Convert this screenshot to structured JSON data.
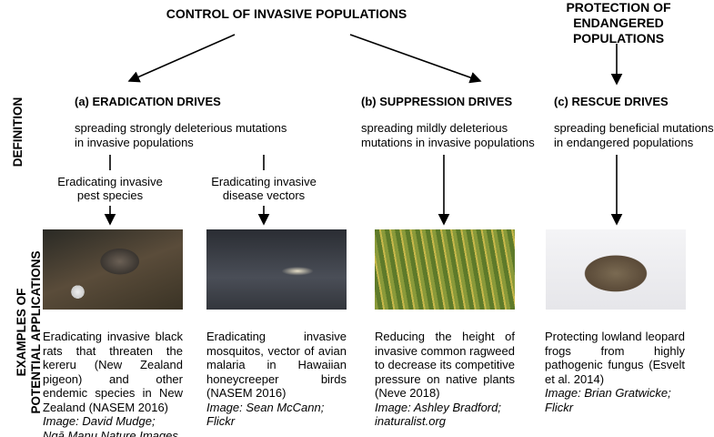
{
  "top": {
    "invasive": "CONTROL OF INVASIVE POPULATIONS",
    "endangered_1": "PROTECTION OF",
    "endangered_2": "ENDANGERED POPULATIONS"
  },
  "side": {
    "definition": "DEFINITION",
    "examples_1": "EXAMPLES OF",
    "examples_2": "POTENTIAL APPLICATIONS"
  },
  "columns": [
    {
      "heading": "(a) ERADICATION DRIVES",
      "def_1": "spreading strongly deleterious mutations",
      "def_2": "in invasive populations"
    },
    {
      "heading": "(b) SUPPRESSION DRIVES",
      "def_1": "spreading mildly deleterious",
      "def_2": "mutations in invasive populations"
    },
    {
      "heading": "(c) RESCUE DRIVES",
      "def_1": "spreading beneficial mutations",
      "def_2": "in endangered populations"
    }
  ],
  "subs": [
    {
      "l1": "Eradicating invasive",
      "l2": "pest species"
    },
    {
      "l1": "Eradicating invasive",
      "l2": "disease vectors"
    }
  ],
  "examples": [
    {
      "text": "Eradicating invasive black rats that threaten the kereru (New Zealand pigeon) and other endemic species in New Zealand (NASEM 2016)",
      "credit_1": "Image: David Mudge;",
      "credit_2": "Ngā Manu Nature Images",
      "photo": "black-rat"
    },
    {
      "text": "Eradicating invasive mosquitos, vector of avian malaria in Hawaiian honeycreeper birds (NASEM 2016)",
      "credit_1": "Image: Sean McCann;",
      "credit_2": "Flickr",
      "photo": "mosquito"
    },
    {
      "text": "Reducing the height of invasive common ragweed to decrease its competitive pressure on native plants (Neve 2018)",
      "credit_1": "Image: Ashley Bradford;",
      "credit_2": "inaturalist.org",
      "photo": "ragweed"
    },
    {
      "text": "Protecting lowland leopard frogs from highly pathogenic fungus (Esvelt et al. 2014)",
      "credit_1": "Image: Brian Gratwicke;",
      "credit_2": "Flickr",
      "photo": "leopard-frog"
    }
  ]
}
